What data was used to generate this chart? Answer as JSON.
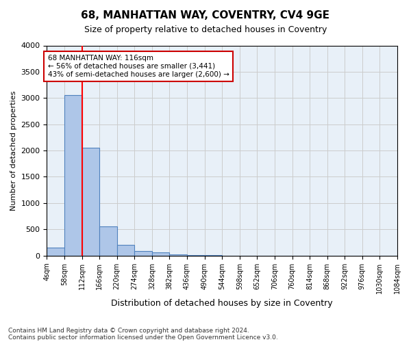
{
  "title": "68, MANHATTAN WAY, COVENTRY, CV4 9GE",
  "subtitle": "Size of property relative to detached houses in Coventry",
  "xlabel": "Distribution of detached houses by size in Coventry",
  "ylabel": "Number of detached properties",
  "bin_labels": [
    "4sqm",
    "58sqm",
    "112sqm",
    "166sqm",
    "220sqm",
    "274sqm",
    "328sqm",
    "382sqm",
    "436sqm",
    "490sqm",
    "544sqm",
    "598sqm",
    "652sqm",
    "706sqm",
    "760sqm",
    "814sqm",
    "868sqm",
    "922sqm",
    "976sqm",
    "1030sqm",
    "1084sqm"
  ],
  "bar_values": [
    150,
    3060,
    2050,
    560,
    210,
    85,
    55,
    20,
    8,
    3,
    1,
    0,
    0,
    0,
    0,
    0,
    0,
    0,
    0,
    0
  ],
  "bar_color": "#aec6e8",
  "bar_edge_color": "#4f81bd",
  "red_line_x": 2,
  "ylim": [
    0,
    4000
  ],
  "yticks": [
    0,
    500,
    1000,
    1500,
    2000,
    2500,
    3000,
    3500,
    4000
  ],
  "annotation_title": "68 MANHATTAN WAY: 116sqm",
  "annotation_line1": "← 56% of detached houses are smaller (3,441)",
  "annotation_line2": "43% of semi-detached houses are larger (2,600) →",
  "annotation_box_color": "#ffffff",
  "annotation_box_edge": "#cc0000",
  "footer_line1": "Contains HM Land Registry data © Crown copyright and database right 2024.",
  "footer_line2": "Contains public sector information licensed under the Open Government Licence v3.0.",
  "background_color": "#ffffff",
  "axes_bg_color": "#e8f0f8",
  "grid_color": "#cccccc"
}
